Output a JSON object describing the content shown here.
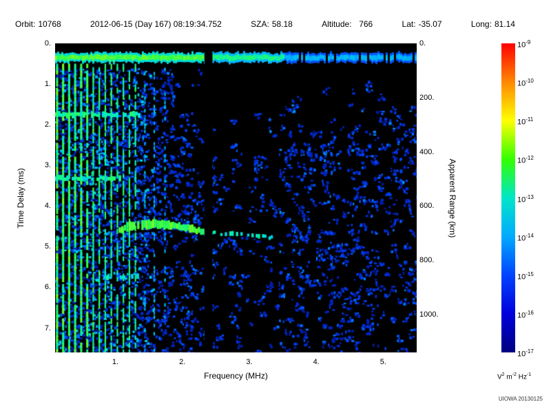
{
  "header": {
    "items": [
      {
        "label": "Orbit:",
        "value": "10768"
      },
      {
        "label": "",
        "value": "2012-06-15 (Day 167) 08:19:34.752"
      },
      {
        "label": "SZA:",
        "value": "58.18"
      },
      {
        "label": "Altitude:",
        "value": "  766"
      },
      {
        "label": "Lat:",
        "value": "-35.07"
      },
      {
        "label": "Long:",
        "value": "81.14"
      }
    ]
  },
  "watermark": "UIOWA 20130125",
  "chart_data": {
    "type": "heatmap",
    "title": "",
    "xlabel": "Frequency (MHz)",
    "ylabel_left": "Time Delay (ms)",
    "ylabel_right": "Apparent Range (km)",
    "x_range_mhz": [
      0.1,
      5.5
    ],
    "y_range_ms": [
      0.0,
      7.6
    ],
    "x_tick_labels": [
      "1.",
      "2.",
      "3.",
      "4.",
      "5."
    ],
    "y_tick_labels": [
      "0.",
      "1.",
      "2.",
      "3.",
      "4.",
      "5.",
      "6.",
      "7."
    ],
    "right_tick_labels": [
      "0.",
      "200.",
      "400.",
      "600.",
      "800.",
      "1000."
    ],
    "km_per_ms": 150,
    "grid": "off",
    "colorbar": {
      "tick_base": "10",
      "tick_exponents": [
        "-9",
        "-10",
        "-11",
        "-12",
        "-13",
        "-14",
        "-15",
        "-16",
        "-17"
      ],
      "units_segments": [
        {
          "base": "V",
          "exp": "2"
        },
        {
          "base": "m",
          "exp": "-2"
        },
        {
          "base": "Hz",
          "exp": "-1"
        }
      ],
      "colors_top_to_bottom": [
        "#ff0000",
        "#ff8800",
        "#ffff00",
        "#33ff00",
        "#00e6c8",
        "#00aaff",
        "#0044ff",
        "#0000dd",
        "#000080"
      ]
    },
    "features": {
      "background_color": "#000000",
      "surface_band_ms": 0.35,
      "plasma_lines": {
        "f_start": 0.13,
        "spacing_mhz": 0.09,
        "count": 14
      },
      "weak_lines_mhz": [
        1.44,
        1.58,
        1.74
      ],
      "harmonic_bands": [
        {
          "t_ms": 1.75,
          "f0_mhz": 0.1,
          "f1_mhz": 1.35,
          "intensity": 0.8
        },
        {
          "t_ms": 3.32,
          "f0_mhz": 0.1,
          "f1_mhz": 1.05,
          "intensity": 0.75
        },
        {
          "t_ms": 5.75,
          "f0_mhz": 0.82,
          "f1_mhz": 1.35,
          "intensity": 0.7
        }
      ],
      "echo_trace": [
        {
          "f_mhz": 1.05,
          "t_ms": 4.6
        },
        {
          "f_mhz": 1.2,
          "t_ms": 4.5
        },
        {
          "f_mhz": 1.45,
          "t_ms": 4.45
        },
        {
          "f_mhz": 1.75,
          "t_ms": 4.45
        },
        {
          "f_mhz": 2.0,
          "t_ms": 4.52
        },
        {
          "f_mhz": 2.33,
          "t_ms": 4.65
        },
        {
          "f_mhz": 2.6,
          "t_ms": 4.68
        },
        {
          "f_mhz": 3.0,
          "t_ms": 4.72
        },
        {
          "f_mhz": 3.35,
          "t_ms": 4.78
        }
      ],
      "data_gap_mhz": [
        2.33,
        2.45
      ],
      "noise_density": {
        "f_below_1.45": 0.85,
        "f_1.45_2.1": 0.6,
        "f_2.1_2.48": 0.28,
        "f_2.48_3.45": 0.23,
        "f_above_3.45": 0.42
      }
    }
  }
}
